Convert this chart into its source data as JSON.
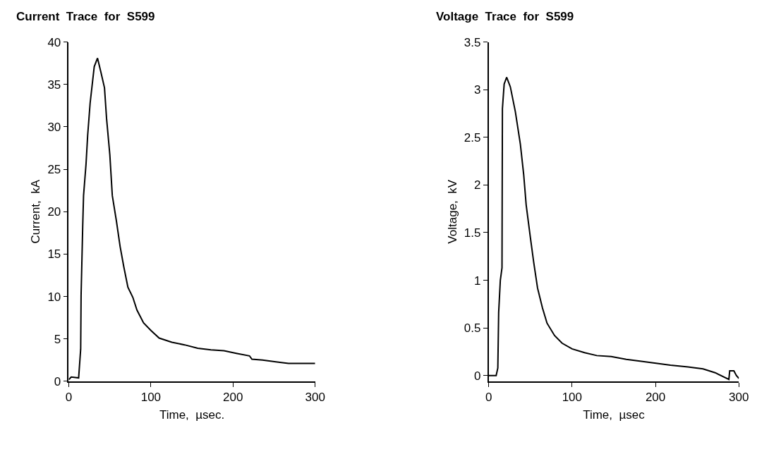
{
  "chart_data": [
    {
      "type": "line",
      "title": "Current  Trace  for  S599",
      "xlabel": "Time,  µsec.",
      "ylabel": "Current,  kA",
      "xlim": [
        0,
        300
      ],
      "xticks": [
        0,
        100,
        200,
        300
      ],
      "ylim": [
        0,
        40
      ],
      "yticks": [
        0,
        5,
        10,
        15,
        20,
        25,
        30,
        35,
        40
      ],
      "marker": "none",
      "line_style": "solid",
      "series": [
        {
          "color": "#000000",
          "x": [
            0,
            3,
            12,
            14.5,
            15,
            17,
            18,
            21,
            23,
            26,
            31,
            35,
            39,
            43.5,
            46,
            50,
            53,
            58,
            62.5,
            67,
            72,
            78,
            83,
            91,
            100,
            110,
            125.5,
            141,
            157,
            173,
            189,
            204,
            220,
            223,
            236,
            252,
            267.5,
            300
          ],
          "values": [
            0.2,
            0.5,
            0.4,
            3.8,
            10.1,
            18.4,
            21.9,
            25.6,
            29,
            32.8,
            37.1,
            38.1,
            36.5,
            34.6,
            31,
            26.7,
            21.9,
            18.9,
            15.9,
            13.5,
            11.1,
            9.9,
            8.4,
            6.9,
            6,
            5.1,
            4.6,
            4.3,
            3.9,
            3.7,
            3.6,
            3.3,
            3,
            2.6,
            2.5,
            2.3,
            2.1,
            2.1
          ]
        }
      ]
    },
    {
      "type": "line",
      "title": "Voltage  Trace  for  S599",
      "xlabel": "Time,  µsec",
      "ylabel": "Voltage,  kV",
      "xlim": [
        0,
        300
      ],
      "xticks": [
        0,
        100,
        200,
        300
      ],
      "ylim": [
        -0.06,
        3.5
      ],
      "yticks": [
        0,
        0.5,
        1,
        1.5,
        2,
        2.5,
        3,
        3.5
      ],
      "marker": "none",
      "line_style": "solid",
      "series": [
        {
          "color": "#000000",
          "x": [
            0,
            9,
            11,
            12,
            14,
            16,
            16.5,
            18.6,
            21.6,
            26,
            32,
            38,
            42,
            45,
            50,
            54,
            58.6,
            64.5,
            70,
            79,
            88,
            100,
            115,
            129.6,
            147,
            165,
            183,
            200.6,
            218,
            239,
            257,
            271.6,
            288,
            289,
            294,
            297,
            300
          ],
          "values": [
            0,
            0,
            0.08,
            0.66,
            1.0,
            1.13,
            2.8,
            3.06,
            3.13,
            3.03,
            2.77,
            2.43,
            2.11,
            1.79,
            1.45,
            1.19,
            0.92,
            0.71,
            0.55,
            0.42,
            0.34,
            0.28,
            0.24,
            0.21,
            0.2,
            0.17,
            0.15,
            0.13,
            0.11,
            0.09,
            0.07,
            0.03,
            -0.04,
            0.05,
            0.05,
            0,
            -0.03
          ]
        }
      ]
    }
  ]
}
